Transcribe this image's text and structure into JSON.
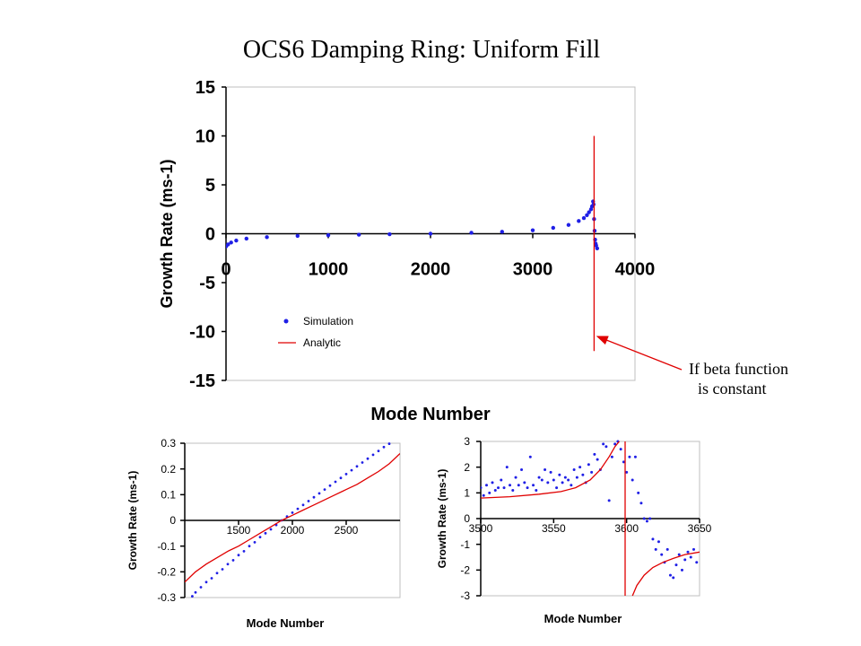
{
  "slide": {
    "title": "OCS6 Damping Ring: Uniform Fill",
    "annotation_line1": "If beta function",
    "annotation_line2": "is constant"
  },
  "colors": {
    "simulation": "#1f1fe6",
    "analytic": "#e00000",
    "annotation_arrow": "#e00000"
  },
  "chart_data": [
    {
      "id": "main",
      "type": "scatter",
      "xlabel": "Mode Number",
      "ylabel": "Growth Rate (ms-1)",
      "xlim": [
        0,
        4000
      ],
      "ylim": [
        -15,
        15
      ],
      "xticks": [
        0,
        1000,
        2000,
        3000,
        4000
      ],
      "yticks": [
        15,
        10,
        5,
        0,
        -5,
        -10,
        -15
      ],
      "legend": [
        "Simulation",
        "Analytic"
      ],
      "legend_position": "lower-left",
      "series": [
        {
          "name": "Simulation",
          "style": "points",
          "x": [
            0,
            20,
            50,
            100,
            200,
            400,
            700,
            1000,
            1300,
            1600,
            2000,
            2400,
            2700,
            3000,
            3200,
            3350,
            3450,
            3500,
            3530,
            3550,
            3570,
            3580,
            3590,
            3595,
            3600,
            3605,
            3610,
            3615,
            3620,
            3630
          ],
          "y": [
            -1.3,
            -1.1,
            -0.9,
            -0.7,
            -0.5,
            -0.35,
            -0.22,
            -0.15,
            -0.1,
            -0.05,
            0.0,
            0.1,
            0.2,
            0.35,
            0.6,
            0.9,
            1.3,
            1.6,
            1.9,
            2.2,
            2.5,
            2.8,
            3.3,
            3.0,
            1.5,
            0.3,
            -0.6,
            -1.0,
            -1.2,
            -1.5
          ]
        },
        {
          "name": "Analytic",
          "style": "line",
          "x": [
            3600,
            3600
          ],
          "y": [
            10,
            -12
          ]
        }
      ]
    },
    {
      "id": "zoom-left",
      "type": "scatter",
      "xlabel": "Mode Number",
      "ylabel": "Growth Rate (ms-1)",
      "xlim": [
        1000,
        3000
      ],
      "ylim": [
        -0.3,
        0.3
      ],
      "xticks": [
        1500,
        2000,
        2500
      ],
      "yticks": [
        0.3,
        0.2,
        0.1,
        0,
        -0.1,
        -0.2,
        -0.3
      ],
      "ytick_labels": [
        "0.3",
        "0.2",
        "0.1",
        "0",
        "-0.1",
        "-0.2",
        "-0.3"
      ],
      "series": [
        {
          "name": "Simulation",
          "style": "points",
          "x": [
            1070,
            1100,
            1150,
            1200,
            1250,
            1300,
            1350,
            1400,
            1450,
            1500,
            1550,
            1600,
            1650,
            1700,
            1750,
            1800,
            1850,
            1900,
            1950,
            2000,
            2050,
            2100,
            2150,
            2200,
            2250,
            2300,
            2350,
            2400,
            2450,
            2500,
            2550,
            2600,
            2650,
            2700,
            2750,
            2800,
            2850,
            2900
          ],
          "y": [
            -0.295,
            -0.28,
            -0.26,
            -0.24,
            -0.225,
            -0.205,
            -0.19,
            -0.17,
            -0.155,
            -0.135,
            -0.12,
            -0.1,
            -0.085,
            -0.065,
            -0.05,
            -0.035,
            -0.018,
            0.0,
            0.015,
            0.03,
            0.045,
            0.06,
            0.075,
            0.09,
            0.105,
            0.12,
            0.135,
            0.15,
            0.165,
            0.18,
            0.195,
            0.21,
            0.225,
            0.24,
            0.255,
            0.27,
            0.285,
            0.298
          ]
        },
        {
          "name": "Analytic",
          "style": "line",
          "x": [
            1000,
            1100,
            1200,
            1300,
            1400,
            1500,
            1600,
            1700,
            1800,
            1900,
            2000,
            2100,
            2200,
            2300,
            2400,
            2500,
            2600,
            2700,
            2800,
            2900,
            3000
          ],
          "y": [
            -0.24,
            -0.2,
            -0.17,
            -0.145,
            -0.12,
            -0.1,
            -0.075,
            -0.05,
            -0.025,
            0.0,
            0.02,
            0.04,
            0.06,
            0.08,
            0.1,
            0.12,
            0.14,
            0.165,
            0.19,
            0.22,
            0.26
          ]
        }
      ]
    },
    {
      "id": "zoom-right",
      "type": "scatter",
      "xlabel": "Mode Number",
      "ylabel": "Growth Rate (ms-1)",
      "xlim": [
        3500,
        3650
      ],
      "ylim": [
        -3,
        3
      ],
      "xticks": [
        3500,
        3550,
        3600,
        3650
      ],
      "yticks": [
        3,
        2,
        1,
        0,
        -1,
        -2,
        -3
      ],
      "series": [
        {
          "name": "Simulation",
          "style": "points",
          "x": [
            3500,
            3502,
            3504,
            3506,
            3508,
            3510,
            3512,
            3514,
            3516,
            3518,
            3520,
            3522,
            3524,
            3526,
            3528,
            3530,
            3532,
            3534,
            3536,
            3538,
            3540,
            3542,
            3544,
            3546,
            3548,
            3550,
            3552,
            3554,
            3556,
            3558,
            3560,
            3562,
            3564,
            3566,
            3568,
            3570,
            3572,
            3574,
            3576,
            3578,
            3580,
            3582,
            3584,
            3586,
            3588,
            3590,
            3592,
            3594,
            3596,
            3598,
            3600,
            3602,
            3604,
            3606,
            3608,
            3610,
            3612,
            3614,
            3616,
            3618,
            3620,
            3622,
            3624,
            3626,
            3628,
            3630,
            3632,
            3634,
            3636,
            3638,
            3640,
            3642,
            3644,
            3646,
            3648
          ],
          "y": [
            1.2,
            0.9,
            1.3,
            1.0,
            1.4,
            1.1,
            1.2,
            1.5,
            1.2,
            2.0,
            1.3,
            1.1,
            1.6,
            1.3,
            1.9,
            1.4,
            1.2,
            2.4,
            1.3,
            1.1,
            1.6,
            1.5,
            1.9,
            1.4,
            1.8,
            1.5,
            1.2,
            1.7,
            1.4,
            1.6,
            1.5,
            1.3,
            1.9,
            1.6,
            2.0,
            1.7,
            1.4,
            2.1,
            1.8,
            2.5,
            2.3,
            1.9,
            2.9,
            2.8,
            0.7,
            2.4,
            2.9,
            3.0,
            2.7,
            2.2,
            1.8,
            2.4,
            1.5,
            2.4,
            1.0,
            0.6,
            0.0,
            -0.1,
            0.0,
            -0.8,
            -1.2,
            -0.9,
            -1.4,
            -1.7,
            -1.2,
            -2.2,
            -2.3,
            -1.8,
            -1.4,
            -2.0,
            -1.6,
            -1.3,
            -1.5,
            -1.2,
            -1.7
          ]
        },
        {
          "name": "Analytic",
          "style": "line",
          "segments": [
            {
              "x": [
                3500,
                3520,
                3540,
                3555,
                3565,
                3575,
                3582,
                3588,
                3592,
                3595
              ],
              "y": [
                0.8,
                0.85,
                0.95,
                1.05,
                1.2,
                1.5,
                1.9,
                2.4,
                2.8,
                3.0
              ]
            },
            {
              "x": [
                3599,
                3599
              ],
              "y": [
                3,
                -3
              ]
            },
            {
              "x": [
                3604,
                3607,
                3612,
                3618,
                3625,
                3632,
                3640,
                3650
              ],
              "y": [
                -3.0,
                -2.6,
                -2.2,
                -1.9,
                -1.7,
                -1.55,
                -1.4,
                -1.3
              ]
            }
          ]
        }
      ]
    }
  ]
}
